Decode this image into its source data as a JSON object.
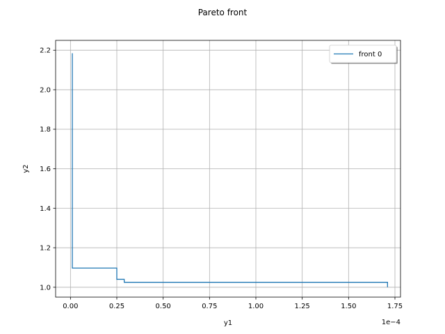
{
  "chart_data": {
    "type": "line",
    "title": "Pareto front",
    "xlabel": "y1",
    "ylabel": "y2",
    "x_offset_label": "1e−4",
    "x_scale": 0.0001,
    "xlim": [
      -0.08,
      1.78
    ],
    "ylim": [
      0.95,
      2.25
    ],
    "x_ticks": [
      0.0,
      0.25,
      0.5,
      0.75,
      1.0,
      1.25,
      1.5,
      1.75
    ],
    "x_tick_labels": [
      "0.00",
      "0.25",
      "0.50",
      "0.75",
      "1.00",
      "1.25",
      "1.50",
      "1.75"
    ],
    "y_ticks": [
      1.0,
      1.2,
      1.4,
      1.6,
      1.8,
      2.0,
      2.2
    ],
    "y_tick_labels": [
      "1.0",
      "1.2",
      "1.4",
      "1.6",
      "1.8",
      "2.0",
      "2.2"
    ],
    "grid": true,
    "legend_position": "top-right",
    "series": [
      {
        "name": "front 0",
        "color": "#1f77b4",
        "drawstyle": "steps",
        "x": [
          0.01,
          0.01,
          0.25,
          0.25,
          0.29,
          0.29,
          1.71,
          1.71
        ],
        "y": [
          2.185,
          1.097,
          1.097,
          1.04,
          1.04,
          1.025,
          1.025,
          1.0
        ]
      }
    ]
  }
}
